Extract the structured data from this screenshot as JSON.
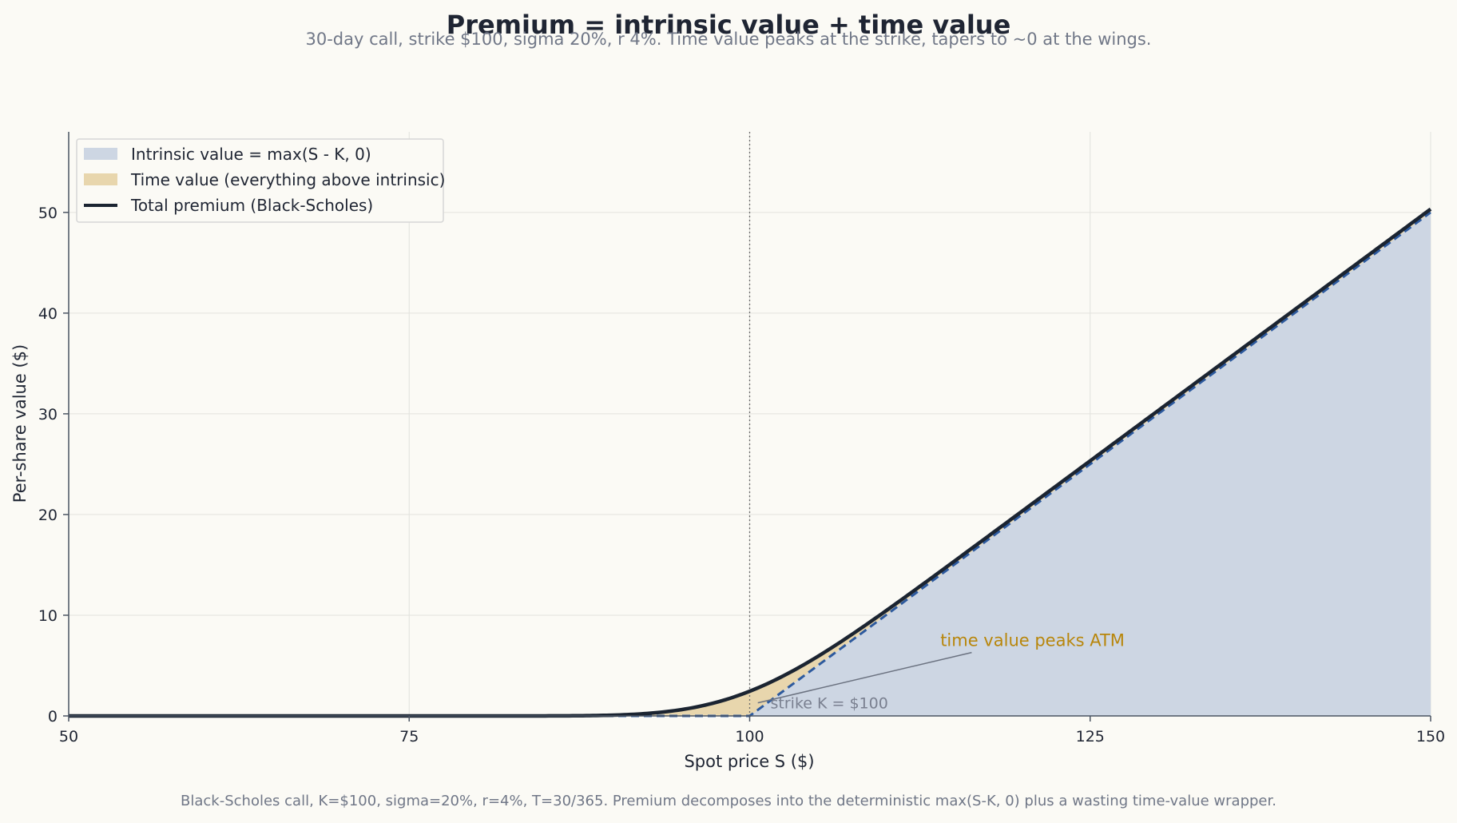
{
  "chart_data": {
    "type": "area",
    "title": "Premium = intrinsic value + time value",
    "subtitle": "30-day call, strike $100, sigma 20%, r 4%. Time value peaks at the strike, tapers to ~0 at the wings.",
    "xlabel": "Spot price S ($)",
    "ylabel": "Per-share value ($)",
    "xlim": [
      50,
      150
    ],
    "ylim": [
      0,
      58
    ],
    "xticks": [
      50,
      75,
      100,
      125,
      150
    ],
    "yticks": [
      0,
      10,
      20,
      30,
      40,
      50
    ],
    "grid": true,
    "legend_position": "top-left",
    "model": {
      "strike": 100,
      "sigma": 0.2,
      "rate": 0.04,
      "T_days": 30,
      "days_per_year": 365
    },
    "series": [
      {
        "name": "Intrinsic value = max(S - K, 0)",
        "kind": "area",
        "color": "#cdd6e3",
        "x": [
          50,
          100,
          150
        ],
        "y": [
          0,
          0,
          50
        ]
      },
      {
        "name": "Time value (everything above intrinsic)",
        "kind": "area",
        "color": "#e8d6ad",
        "x": [
          50,
          90,
          95,
          100,
          105,
          110,
          150
        ],
        "y": [
          0.0,
          0.06,
          0.55,
          2.45,
          1.45,
          0.65,
          0.16
        ]
      },
      {
        "name": "Total premium (Black-Scholes)",
        "kind": "line",
        "color": "#1b2431",
        "x": [
          50,
          80,
          90,
          95,
          100,
          105,
          110,
          115,
          120,
          125,
          130,
          140,
          150
        ],
        "y": [
          0.0,
          0.0,
          0.06,
          0.55,
          2.45,
          6.45,
          10.65,
          15.5,
          20.35,
          25.3,
          30.2,
          40.1,
          50.2
        ]
      }
    ],
    "intrinsic_line": {
      "style": "dashed",
      "color": "#2d5a9e"
    },
    "strike_line": {
      "x": 100,
      "label": "strike K = $100"
    },
    "annotation": {
      "text": "time value peaks ATM",
      "x": 114,
      "y": 7.5,
      "arrow_to_x": 100.6,
      "arrow_to_y": 1.3
    },
    "footer": "Black-Scholes call, K=$100, sigma=20%, r=4%, T=30/365. Premium decomposes into the deterministic max(S-K, 0) plus a wasting time-value wrapper."
  }
}
